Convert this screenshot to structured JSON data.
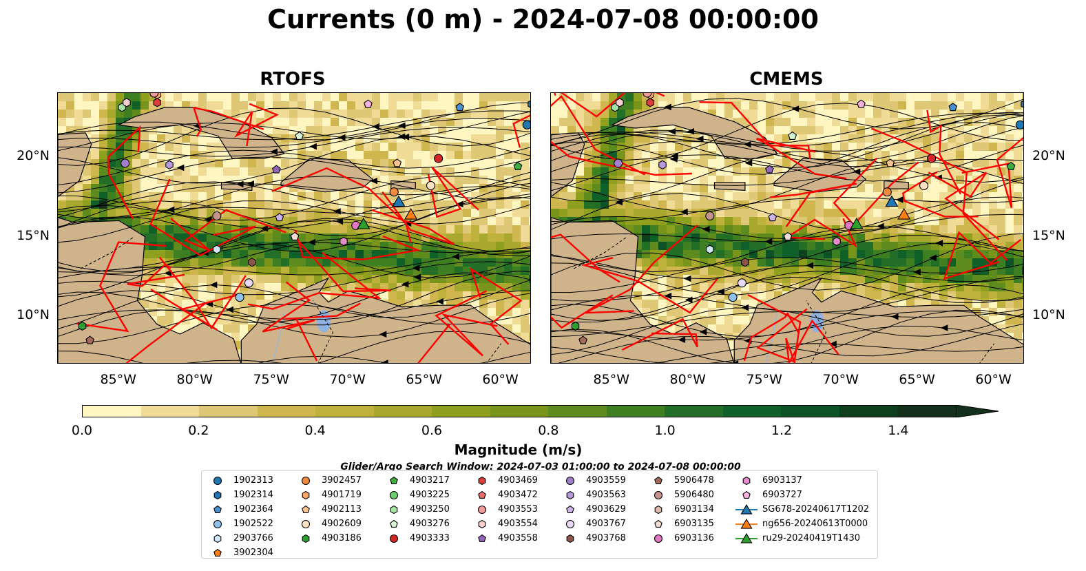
{
  "title": "Currents (0 m) - 2024-07-08 00:00:00",
  "panels": [
    {
      "title": "RTOFS"
    },
    {
      "title": "CMEMS"
    }
  ],
  "lon_ticks": [
    "85°W",
    "80°W",
    "75°W",
    "70°W",
    "65°W",
    "60°W"
  ],
  "lat_ticks": [
    "20°N",
    "15°N",
    "10°N"
  ],
  "colorbar": {
    "title": "Magnitude (m/s)",
    "tick_labels": [
      "0.0",
      "0.2",
      "0.4",
      "0.6",
      "0.8",
      "1.0",
      "1.2",
      "1.4"
    ],
    "min": 0.0,
    "max": 1.5,
    "step": 0.1,
    "extend": "max",
    "colors": [
      "#fff6c2",
      "#f0dc96",
      "#dec875",
      "#cfb64f",
      "#bfb23c",
      "#a8a72e",
      "#8f9f1e",
      "#78941a",
      "#5d8b1d",
      "#3e7f22",
      "#236f27",
      "#0f6129",
      "#0d5226",
      "#0e4020",
      "#13311a"
    ]
  },
  "search_window": "Glider/Argo Search Window: 2024-07-03 01:00:00 to 2024-07-08 00:00:00",
  "legend": {
    "columns": [
      [
        {
          "label": "1902313",
          "marker": "circle",
          "color": "#1f77b4"
        },
        {
          "label": "1902314",
          "marker": "hexagon",
          "color": "#1f77b4"
        },
        {
          "label": "1902364",
          "marker": "pentagon",
          "color": "#4a8fd0"
        },
        {
          "label": "1902522",
          "marker": "circle",
          "color": "#8fc1ea"
        },
        {
          "label": "2903766",
          "marker": "hexagon",
          "color": "#cfe8fa"
        },
        {
          "label": "3902304",
          "marker": "pentagon",
          "color": "#ff7f0e"
        }
      ],
      [
        {
          "label": "3902457",
          "marker": "circle",
          "color": "#f28c3c"
        },
        {
          "label": "4901719",
          "marker": "hexagon",
          "color": "#fca866"
        },
        {
          "label": "4902113",
          "marker": "pentagon",
          "color": "#fdc591"
        },
        {
          "label": "4902609",
          "marker": "circle",
          "color": "#ffe2c2"
        },
        {
          "label": "4903186",
          "marker": "hexagon",
          "color": "#2ca02c"
        }
      ],
      [
        {
          "label": "4903217",
          "marker": "pentagon",
          "color": "#3cac3c"
        },
        {
          "label": "4903225",
          "marker": "circle",
          "color": "#6bd06b"
        },
        {
          "label": "4903250",
          "marker": "hexagon",
          "color": "#a3e6a3"
        },
        {
          "label": "4903276",
          "marker": "pentagon",
          "color": "#d5f5d5"
        },
        {
          "label": "4903333",
          "marker": "circle",
          "color": "#d62728"
        }
      ],
      [
        {
          "label": "4903469",
          "marker": "hexagon",
          "color": "#dc3c3c"
        },
        {
          "label": "4903472",
          "marker": "pentagon",
          "color": "#e86a6a"
        },
        {
          "label": "4903553",
          "marker": "circle",
          "color": "#f29a9a"
        },
        {
          "label": "4903554",
          "marker": "hexagon",
          "color": "#fbd0d0"
        },
        {
          "label": "4903558",
          "marker": "pentagon",
          "color": "#9467bd"
        }
      ],
      [
        {
          "label": "4903559",
          "marker": "circle",
          "color": "#a27fcc"
        },
        {
          "label": "4903563",
          "marker": "hexagon",
          "color": "#b799dc"
        },
        {
          "label": "4903629",
          "marker": "pentagon",
          "color": "#cdb5ea"
        },
        {
          "label": "4903767",
          "marker": "circle",
          "color": "#e7d9f7"
        },
        {
          "label": "4903768",
          "marker": "hexagon",
          "color": "#8c564b"
        }
      ],
      [
        {
          "label": "5906478",
          "marker": "pentagon",
          "color": "#a46b5d"
        },
        {
          "label": "5906480",
          "marker": "circle",
          "color": "#c4948a"
        },
        {
          "label": "6903134",
          "marker": "hexagon",
          "color": "#e0b9af"
        },
        {
          "label": "6903135",
          "marker": "pentagon",
          "color": "#f6ddd6"
        },
        {
          "label": "6903136",
          "marker": "circle",
          "color": "#e377c2"
        }
      ],
      [
        {
          "label": "6903137",
          "marker": "hexagon",
          "color": "#e88ccd"
        },
        {
          "label": "6903727",
          "marker": "pentagon",
          "color": "#f6b2e0"
        },
        {
          "label": "SG678-20240617T1202",
          "marker": "triangle-line",
          "color": "#1f77b4"
        },
        {
          "label": "ng656-20240613T0000",
          "marker": "triangle-line",
          "color": "#ff7f0e"
        },
        {
          "label": "ru29-20240419T1430",
          "marker": "triangle-line",
          "color": "#2ca02c"
        }
      ]
    ]
  },
  "extent": {
    "lon": [
      -89,
      -58
    ],
    "lat": [
      7,
      24
    ]
  },
  "floats": [
    {
      "id": "1902313",
      "lon": -58.3,
      "lat": 22.0
    },
    {
      "id": "1902314",
      "lon": -58.0,
      "lat": 23.3
    },
    {
      "id": "1902364",
      "lon": -62.7,
      "lat": 23.1
    },
    {
      "id": "1902522",
      "lon": -77.1,
      "lat": 11.2
    },
    {
      "id": "2903766",
      "lon": -78.6,
      "lat": 14.2
    },
    {
      "id": "3902457",
      "lon": -67.0,
      "lat": 17.8
    },
    {
      "id": "4901719",
      "lon": -82.5,
      "lat": 23.9
    },
    {
      "id": "4902113",
      "lon": -66.8,
      "lat": 19.6
    },
    {
      "id": "4902609",
      "lon": -64.6,
      "lat": 18.2
    },
    {
      "id": "4903186",
      "lon": -87.4,
      "lat": 9.4
    },
    {
      "id": "4903217",
      "lon": -58.9,
      "lat": 19.4
    },
    {
      "id": "4903250",
      "lon": -84.8,
      "lat": 23.1
    },
    {
      "id": "4903276",
      "lon": -73.2,
      "lat": 21.3
    },
    {
      "id": "4903333",
      "lon": -64.1,
      "lat": 19.9
    },
    {
      "id": "4903469",
      "lon": -82.5,
      "lat": 23.4
    },
    {
      "id": "4903553",
      "lon": -82.7,
      "lat": 24.0
    },
    {
      "id": "4903554",
      "lon": -84.5,
      "lat": 23.4
    },
    {
      "id": "4903558",
      "lon": -74.7,
      "lat": 19.2
    },
    {
      "id": "4903559",
      "lon": -84.6,
      "lat": 19.6
    },
    {
      "id": "4903563",
      "lon": -81.7,
      "lat": 19.5
    },
    {
      "id": "4903629",
      "lon": -74.5,
      "lat": 16.2
    },
    {
      "id": "4903767",
      "lon": -76.5,
      "lat": 12.1
    },
    {
      "id": "4903768",
      "lon": -76.3,
      "lat": 13.4
    },
    {
      "id": "5906478",
      "lon": -86.9,
      "lat": 8.5
    },
    {
      "id": "5906480",
      "lon": -78.6,
      "lat": 16.3
    },
    {
      "id": "6903135",
      "lon": -73.5,
      "lat": 15.0
    },
    {
      "id": "6903136",
      "lon": -69.5,
      "lat": 15.7
    },
    {
      "id": "6903137",
      "lon": -70.3,
      "lat": 14.7
    },
    {
      "id": "6903727",
      "lon": -68.7,
      "lat": 23.3
    }
  ],
  "gliders": [
    {
      "id": "SG678-20240617T1202",
      "lon": -66.7,
      "lat": 17.2
    },
    {
      "id": "ng656-20240613T0000",
      "lon": -65.9,
      "lat": 16.4
    },
    {
      "id": "ru29-20240419T1430",
      "lon": -69.0,
      "lat": 15.8
    }
  ]
}
